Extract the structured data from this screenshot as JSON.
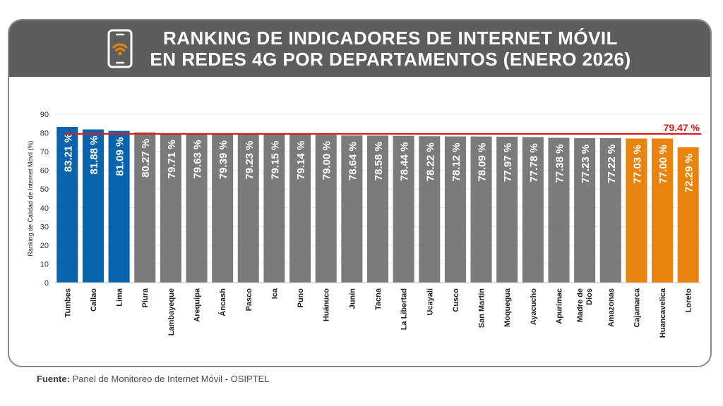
{
  "title_line1": "RANKING DE INDICADORES DE INTERNET MÓVIL",
  "title_line2": "EN REDES 4G POR DEPARTAMENTOS (ENERO 2026)",
  "source_label": "Fuente:",
  "source_text": "Panel de Monitoreo de Internet Móvil - OSIPTEL",
  "icons": {
    "header": "smartphone-wifi-icon"
  },
  "chart_data": {
    "type": "bar",
    "ylabel": "Ranking de Calidad de Internet Móvil (%)",
    "xlabel": "",
    "ylim": [
      0,
      90
    ],
    "yticks": [
      0,
      10,
      20,
      30,
      40,
      50,
      60,
      70,
      80,
      90
    ],
    "grid": true,
    "categories": [
      "Tumbes",
      "Callao",
      "Lima",
      "Piura",
      "Lambayeque",
      "Arequipa",
      "Áncash",
      "Pasco",
      "Ica",
      "Puno",
      "Huánuco",
      "Junín",
      "Tacna",
      "La Libertad",
      "Ucayali",
      "Cusco",
      "San Martín",
      "Moquegua",
      "Ayacucho",
      "Apurímac",
      "Madre de Dios",
      "Amazonas",
      "Cajamarca",
      "Huancavelica",
      "Loreto"
    ],
    "values": [
      83.21,
      81.88,
      81.09,
      80.27,
      79.71,
      79.63,
      79.39,
      79.23,
      79.15,
      79.14,
      79.0,
      78.64,
      78.58,
      78.44,
      78.22,
      78.12,
      78.09,
      77.97,
      77.78,
      77.38,
      77.23,
      77.22,
      77.03,
      77.0,
      72.29
    ],
    "data_labels": [
      "83.21 %",
      "81.88 %",
      "81.09 %",
      "80.27 %",
      "79.71 %",
      "79.63 %",
      "79.39 %",
      "79.23 %",
      "79.15 %",
      "79.14 %",
      "79.00 %",
      "78.64 %",
      "78.58 %",
      "78.44 %",
      "78.22 %",
      "78.12 %",
      "78.09 %",
      "77.97 %",
      "77.78 %",
      "77.38 %",
      "77.23 %",
      "77.22 %",
      "77.03 %",
      "77.00 %",
      "72.29 %"
    ],
    "bar_groups": [
      "top",
      "top",
      "top",
      "mid",
      "mid",
      "mid",
      "mid",
      "mid",
      "mid",
      "mid",
      "mid",
      "mid",
      "mid",
      "mid",
      "mid",
      "mid",
      "mid",
      "mid",
      "mid",
      "mid",
      "mid",
      "mid",
      "bottom",
      "bottom",
      "bottom"
    ],
    "colors": {
      "top": "#0a63ad",
      "mid": "#7b7b7b",
      "bottom": "#e8830e",
      "reference": "#e3161c",
      "header": "#5d5d5d"
    },
    "reference_line": {
      "value": 79.47,
      "label": "79.47 %"
    }
  }
}
